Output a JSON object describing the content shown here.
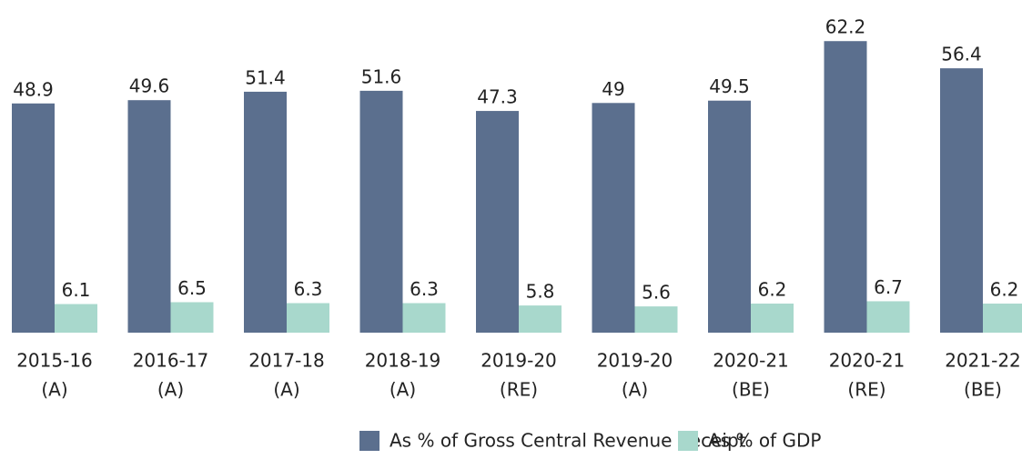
{
  "chart_data": {
    "type": "bar",
    "categories": [
      [
        "2015-16",
        "(A)"
      ],
      [
        "2016-17",
        "(A)"
      ],
      [
        "2017-18",
        "(A)"
      ],
      [
        "2018-19",
        "(A)"
      ],
      [
        "2019-20",
        "(RE)"
      ],
      [
        "2019-20",
        "(A)"
      ],
      [
        "2020-21",
        "(BE)"
      ],
      [
        "2020-21",
        "(RE)"
      ],
      [
        "2021-22",
        "(BE)"
      ]
    ],
    "series": [
      {
        "name": "As % of Gross Central Revenue Receipt",
        "color": "#5b6f8e",
        "values": [
          48.9,
          49.6,
          51.4,
          51.6,
          47.3,
          49,
          49.5,
          62.2,
          56.4
        ]
      },
      {
        "name": "As % of GDP",
        "color": "#a8d8cc",
        "values": [
          6.1,
          6.5,
          6.3,
          6.3,
          5.8,
          5.6,
          6.2,
          6.7,
          6.2
        ]
      }
    ],
    "ylim": [
      0,
      70
    ]
  }
}
